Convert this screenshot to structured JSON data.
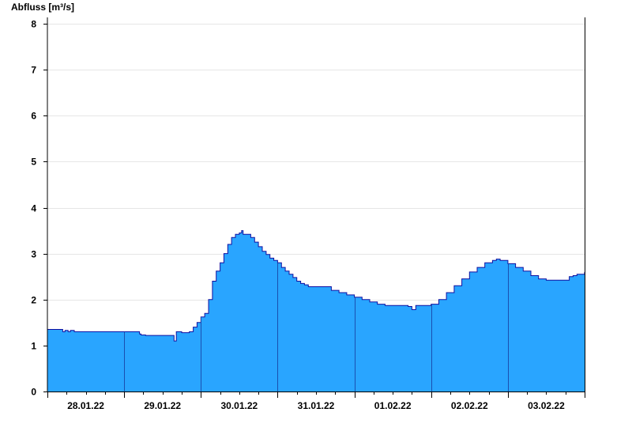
{
  "chart_data": {
    "type": "area",
    "ylabel": "Abfluss [m³/s]",
    "ylim": [
      0,
      8
    ],
    "yticks": [
      0,
      1,
      2,
      3,
      4,
      5,
      6,
      7,
      8
    ],
    "x_range_days": 7,
    "x_tick_labels": [
      "28.01.22",
      "29.01.22",
      "30.01.22",
      "31.01.22",
      "01.02.22",
      "02.02.22",
      "03.02.22"
    ],
    "grid": "horizontal",
    "fill_color": "#29a5ff",
    "line_color": "#1010a0",
    "series": [
      {
        "x": [
          0.0,
          0.17,
          0.2,
          0.23,
          0.27,
          0.3,
          0.35,
          0.5,
          1.0,
          1.18,
          1.2,
          1.22,
          1.28,
          1.5,
          1.6,
          1.65,
          1.68,
          1.7,
          1.75,
          1.85,
          1.9,
          1.95,
          2.0,
          2.05,
          2.1,
          2.15,
          2.2,
          2.25,
          2.3,
          2.35,
          2.4,
          2.45,
          2.5,
          2.53,
          2.55,
          2.6,
          2.65,
          2.7,
          2.75,
          2.8,
          2.85,
          2.9,
          2.95,
          3.0,
          3.05,
          3.1,
          3.15,
          3.2,
          3.25,
          3.3,
          3.35,
          3.4,
          3.5,
          3.6,
          3.7,
          3.8,
          3.9,
          4.0,
          4.1,
          4.2,
          4.3,
          4.4,
          4.5,
          4.6,
          4.7,
          4.75,
          4.8,
          4.85,
          4.9,
          5.0,
          5.1,
          5.2,
          5.3,
          5.4,
          5.5,
          5.6,
          5.7,
          5.8,
          5.85,
          5.9,
          6.0,
          6.1,
          6.2,
          6.3,
          6.4,
          6.5,
          6.6,
          6.7,
          6.8,
          6.85,
          6.9,
          7.0
        ],
        "y": [
          1.35,
          1.35,
          1.3,
          1.33,
          1.3,
          1.33,
          1.3,
          1.3,
          1.3,
          1.3,
          1.25,
          1.23,
          1.22,
          1.22,
          1.22,
          1.1,
          1.3,
          1.3,
          1.28,
          1.3,
          1.4,
          1.5,
          1.62,
          1.7,
          2.0,
          2.4,
          2.62,
          2.8,
          3.0,
          3.2,
          3.35,
          3.42,
          3.45,
          3.5,
          3.42,
          3.42,
          3.35,
          3.25,
          3.15,
          3.05,
          2.98,
          2.9,
          2.85,
          2.8,
          2.7,
          2.62,
          2.55,
          2.48,
          2.4,
          2.35,
          2.32,
          2.28,
          2.28,
          2.28,
          2.2,
          2.15,
          2.1,
          2.05,
          2.0,
          1.95,
          1.9,
          1.87,
          1.87,
          1.87,
          1.85,
          1.78,
          1.87,
          1.87,
          1.87,
          1.9,
          2.0,
          2.15,
          2.3,
          2.45,
          2.6,
          2.7,
          2.8,
          2.85,
          2.88,
          2.85,
          2.78,
          2.7,
          2.62,
          2.52,
          2.45,
          2.42,
          2.42,
          2.42,
          2.5,
          2.52,
          2.55,
          2.6
        ]
      }
    ]
  }
}
